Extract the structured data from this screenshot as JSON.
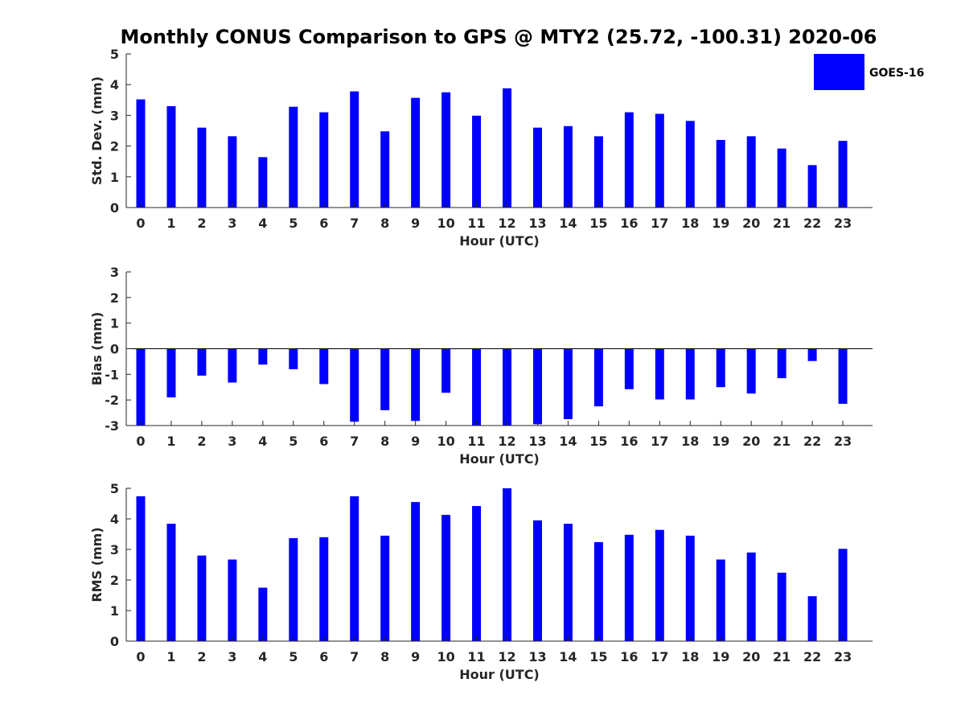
{
  "chart_data": {
    "type": "bar",
    "title": "Monthly CONUS Comparison to GPS @ MTY2 (25.72, -100.31) 2020-06",
    "legend": {
      "label": "GOES-16",
      "position": "top-right",
      "color": "#0000ff"
    },
    "bar_color": "#0000ff",
    "categories": [
      "0",
      "1",
      "2",
      "3",
      "4",
      "5",
      "6",
      "7",
      "8",
      "9",
      "10",
      "11",
      "12",
      "13",
      "14",
      "15",
      "16",
      "17",
      "18",
      "19",
      "20",
      "21",
      "22",
      "23"
    ],
    "panels": [
      {
        "ylabel": "Std. Dev. (mm)",
        "xlabel": "Hour (UTC)",
        "ylim": [
          0,
          5
        ],
        "yticks": [
          "0",
          "1",
          "2",
          "3",
          "4",
          "5"
        ],
        "values": [
          3.52,
          3.3,
          2.6,
          2.32,
          1.64,
          3.28,
          3.1,
          3.78,
          2.48,
          3.57,
          3.75,
          2.99,
          3.88,
          2.6,
          2.65,
          2.32,
          3.1,
          3.05,
          2.82,
          2.2,
          2.32,
          1.92,
          1.38,
          2.17
        ]
      },
      {
        "ylabel": "Bias (mm)",
        "xlabel": "Hour (UTC)",
        "ylim": [
          -3,
          3
        ],
        "yticks": [
          "-3",
          "-2",
          "-1",
          "0",
          "1",
          "2",
          "3"
        ],
        "values": [
          -3.0,
          -1.9,
          -1.05,
          -1.32,
          -0.62,
          -0.8,
          -1.38,
          -2.85,
          -2.4,
          -2.82,
          -1.72,
          -3.0,
          -3.0,
          -2.95,
          -2.75,
          -2.25,
          -1.58,
          -1.98,
          -1.98,
          -1.5,
          -1.75,
          -1.15,
          -0.48,
          -2.15
        ]
      },
      {
        "ylabel": "RMS (mm)",
        "xlabel": "Hour (UTC)",
        "ylim": [
          0,
          5
        ],
        "yticks": [
          "0",
          "1",
          "2",
          "3",
          "4",
          "5"
        ],
        "values": [
          4.74,
          3.84,
          2.8,
          2.67,
          1.75,
          3.37,
          3.4,
          4.74,
          3.45,
          4.55,
          4.13,
          4.42,
          5.0,
          3.95,
          3.84,
          3.24,
          3.48,
          3.64,
          3.45,
          2.67,
          2.9,
          2.24,
          1.47,
          3.02
        ]
      }
    ]
  }
}
